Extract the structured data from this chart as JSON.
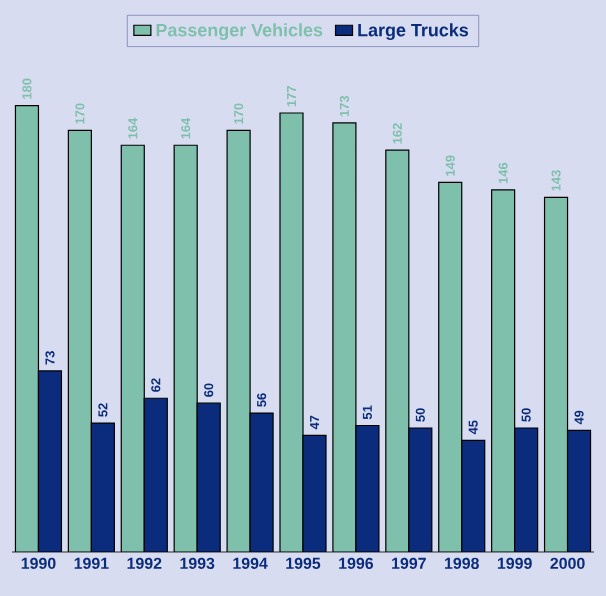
{
  "chart_data": {
    "type": "bar",
    "categories": [
      "1990",
      "1991",
      "1992",
      "1993",
      "1994",
      "1995",
      "1996",
      "1997",
      "1998",
      "1999",
      "2000"
    ],
    "series": [
      {
        "name": "Passenger Vehicles",
        "color": "#7fc0ac",
        "values": [
          180,
          170,
          164,
          164,
          170,
          177,
          173,
          162,
          149,
          146,
          143
        ]
      },
      {
        "name": "Large Trucks",
        "color": "#0b2c7c",
        "values": [
          73,
          52,
          62,
          60,
          56,
          47,
          51,
          50,
          45,
          50,
          49
        ]
      }
    ],
    "data_labels": true,
    "legend": "top"
  }
}
